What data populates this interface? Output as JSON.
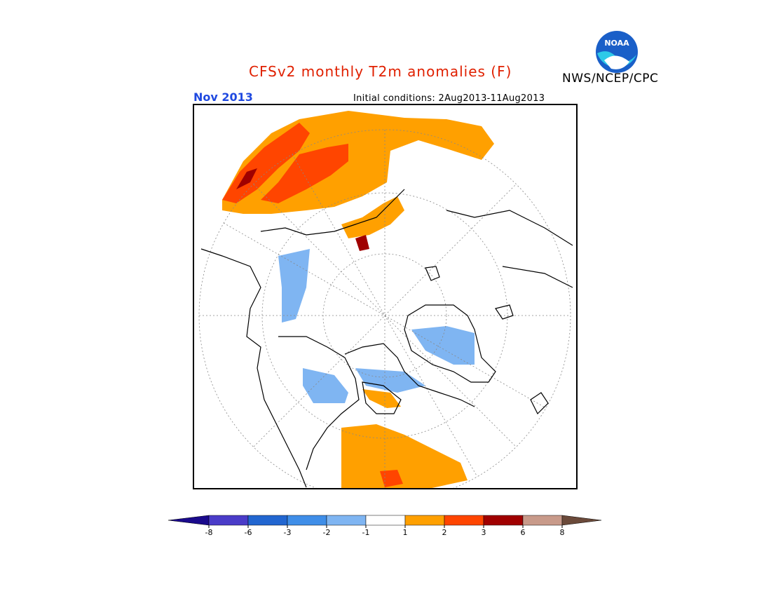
{
  "header": {
    "title": "CFSv2 monthly T2m anomalies (F)",
    "agency": "NWS/NCEP/CPC",
    "logo_text": "NOAA",
    "month": "Nov 2013",
    "initial_conditions": "Initial conditions: 2Aug2013-11Aug2013"
  },
  "colors": {
    "title": "#e02000",
    "month": "#1f49e0",
    "land_outline": "#000000",
    "grid": "#888888"
  },
  "legend": {
    "colors": [
      "#1a0a8c",
      "#4a3cc8",
      "#2266d0",
      "#3f8ee8",
      "#7fb5f2",
      "#ffffff",
      "#ffa000",
      "#ff4500",
      "#a00000",
      "#c89a8a",
      "#6b4a3a"
    ],
    "ticks": [
      "-8",
      "-6",
      "-3",
      "-2",
      "-1",
      "1",
      "2",
      "3",
      "6",
      "8"
    ]
  }
}
